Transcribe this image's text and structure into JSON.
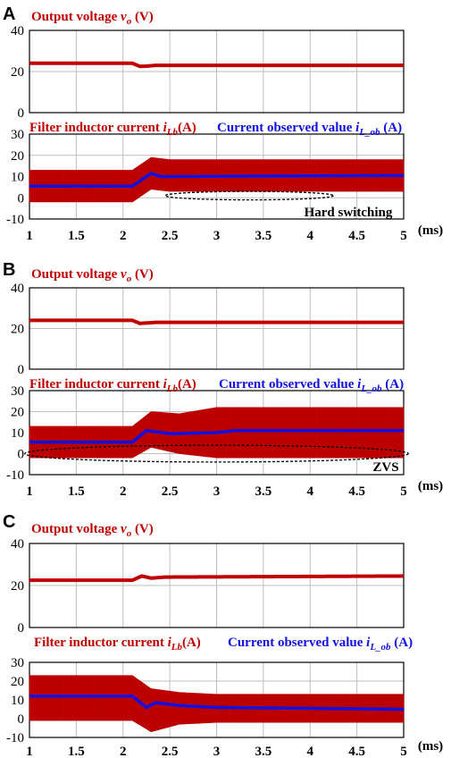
{
  "colors": {
    "red": "#c00000",
    "blue": "#1010e0",
    "grid": "#bdbdbd",
    "frame": "#000000"
  },
  "x_axis": {
    "ticks": [
      "1",
      "1.5",
      "2",
      "2.5",
      "3",
      "3.5",
      "4",
      "4.5",
      "5"
    ],
    "unit": "(ms)",
    "range": [
      1,
      5
    ]
  },
  "panels": [
    {
      "label": "A",
      "top_title": {
        "prefix": "Output voltage ",
        "var": "v",
        "sub": "o",
        "suffix": " (V)"
      },
      "bottom_title": {
        "prefix": "Filter inductor current ",
        "var": "i",
        "sub": "Lb",
        "suffix": "(A)"
      },
      "observed_title": {
        "prefix": "Current observed value ",
        "var": "i",
        "sub": "L_ob",
        "suffix": " (A)"
      },
      "annotation": "Hard switching"
    },
    {
      "label": "B",
      "top_title": {
        "prefix": "Output voltage ",
        "var": "v",
        "sub": "o",
        "suffix": " (V)"
      },
      "bottom_title": {
        "prefix": "Filter inductor current ",
        "var": "i",
        "sub": "Lb",
        "suffix": "(A)"
      },
      "observed_title": {
        "prefix": "Current observed value ",
        "var": "i",
        "sub": "L_ob",
        "suffix": " (A)"
      },
      "annotation": "ZVS"
    },
    {
      "label": "C",
      "top_title": {
        "prefix": "Output voltage ",
        "var": "v",
        "sub": "o",
        "suffix": " (V)"
      },
      "bottom_title": {
        "prefix": "Filter inductor current ",
        "var": "i",
        "sub": "Lb",
        "suffix": "(A)"
      },
      "observed_title": {
        "prefix": "Current observed value ",
        "var": "i",
        "sub": "L_ob",
        "suffix": " (A)"
      },
      "annotation": ""
    }
  ],
  "chart_data": [
    {
      "panel": "A",
      "type": "line",
      "voltage": {
        "ylim": [
          0,
          40
        ],
        "yticks": [
          0,
          20,
          40
        ],
        "x": [
          1,
          2.1,
          2.18,
          2.25,
          2.35,
          5
        ],
        "y": [
          24,
          24,
          22.5,
          22.6,
          23,
          23
        ]
      },
      "current": {
        "ylim": [
          -10,
          30
        ],
        "yticks": [
          -10,
          0,
          10,
          20,
          30
        ],
        "envelope_x": [
          1,
          2.1,
          2.3,
          2.5,
          5
        ],
        "envelope_upper": [
          13,
          13,
          19,
          18,
          18
        ],
        "envelope_lower": [
          -2,
          -2,
          4,
          3,
          3
        ],
        "observed_x": [
          1,
          2.1,
          2.3,
          2.4,
          5
        ],
        "observed_y": [
          5.5,
          5.5,
          11.5,
          10,
          10.5
        ],
        "annotation_center": [
          3.35,
          1
        ],
        "annotation_radii": [
          0.9,
          2
        ]
      }
    },
    {
      "panel": "B",
      "type": "line",
      "voltage": {
        "ylim": [
          0,
          40
        ],
        "yticks": [
          0,
          20,
          40
        ],
        "x": [
          1,
          2.1,
          2.18,
          2.25,
          2.35,
          5
        ],
        "y": [
          24,
          24,
          22.5,
          22.7,
          23,
          23
        ]
      },
      "current": {
        "ylim": [
          -10,
          30
        ],
        "yticks": [
          -10,
          0,
          10,
          20,
          30
        ],
        "envelope_x": [
          1,
          2.1,
          2.3,
          2.6,
          3,
          5
        ],
        "envelope_upper": [
          13,
          13,
          20,
          19,
          22,
          22
        ],
        "envelope_lower": [
          -2,
          -2,
          3,
          0,
          -2,
          -2
        ],
        "observed_x": [
          1,
          2.1,
          2.25,
          2.5,
          3,
          3.2,
          5
        ],
        "observed_y": [
          5.5,
          5.5,
          11,
          9.5,
          10,
          11,
          11
        ],
        "annotation_center": [
          3.0,
          0
        ],
        "annotation_radii": [
          2.05,
          4
        ]
      }
    },
    {
      "panel": "C",
      "type": "line",
      "voltage": {
        "ylim": [
          0,
          40
        ],
        "yticks": [
          0,
          20,
          40
        ],
        "x": [
          1,
          2.1,
          2.2,
          2.3,
          2.45,
          5
        ],
        "y": [
          22.5,
          22.5,
          24.5,
          23.5,
          24,
          24.5
        ]
      },
      "current": {
        "ylim": [
          -10,
          30
        ],
        "yticks": [
          -10,
          0,
          10,
          20,
          30
        ],
        "envelope_x": [
          1,
          2.1,
          2.3,
          2.6,
          3,
          5
        ],
        "envelope_upper": [
          23,
          23,
          16,
          14,
          13,
          13
        ],
        "envelope_lower": [
          -1,
          -1,
          -7,
          -3,
          -2,
          -2
        ],
        "observed_x": [
          1,
          2.1,
          2.25,
          2.35,
          2.6,
          3,
          5
        ],
        "observed_y": [
          12,
          12,
          6,
          8.5,
          7,
          6,
          5
        ],
        "annotation_center": null,
        "annotation_radii": null
      }
    }
  ]
}
